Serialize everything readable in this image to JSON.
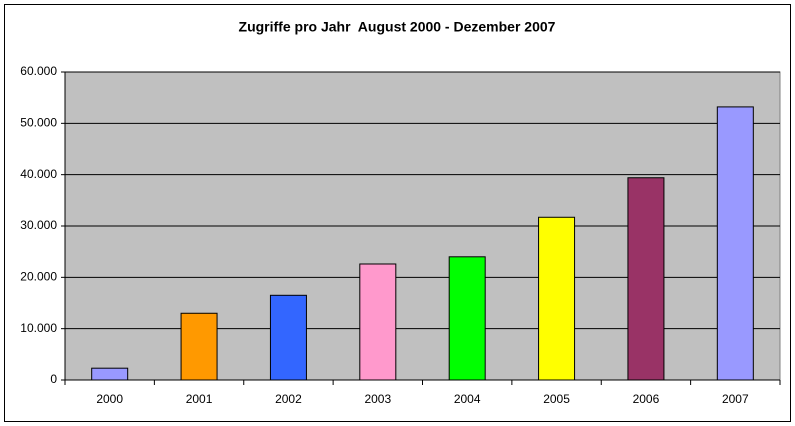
{
  "chart_data": {
    "type": "bar",
    "title": "Zugriffe pro Jahr  August 2000 - Dezember 2007",
    "categories": [
      "2000",
      "2001",
      "2002",
      "2003",
      "2004",
      "2005",
      "2006",
      "2007"
    ],
    "values": [
      2300,
      13000,
      16500,
      22600,
      24000,
      31700,
      39400,
      53200
    ],
    "colors": [
      "#9999ff",
      "#ff9900",
      "#3366ff",
      "#ff99cc",
      "#00ff00",
      "#ffff00",
      "#993366",
      "#9999ff"
    ],
    "ylim": [
      0,
      60000
    ],
    "yticks": [
      0,
      {
        "value": 10000,
        "label": "10.000"
      },
      {
        "value": 20000,
        "label": "20.000"
      },
      {
        "value": 30000,
        "label": "30.000"
      },
      {
        "value": 40000,
        "label": "40.000"
      },
      {
        "value": 50000,
        "label": "50.000"
      },
      {
        "value": 60000,
        "label": "60.000"
      }
    ],
    "grid": true
  }
}
